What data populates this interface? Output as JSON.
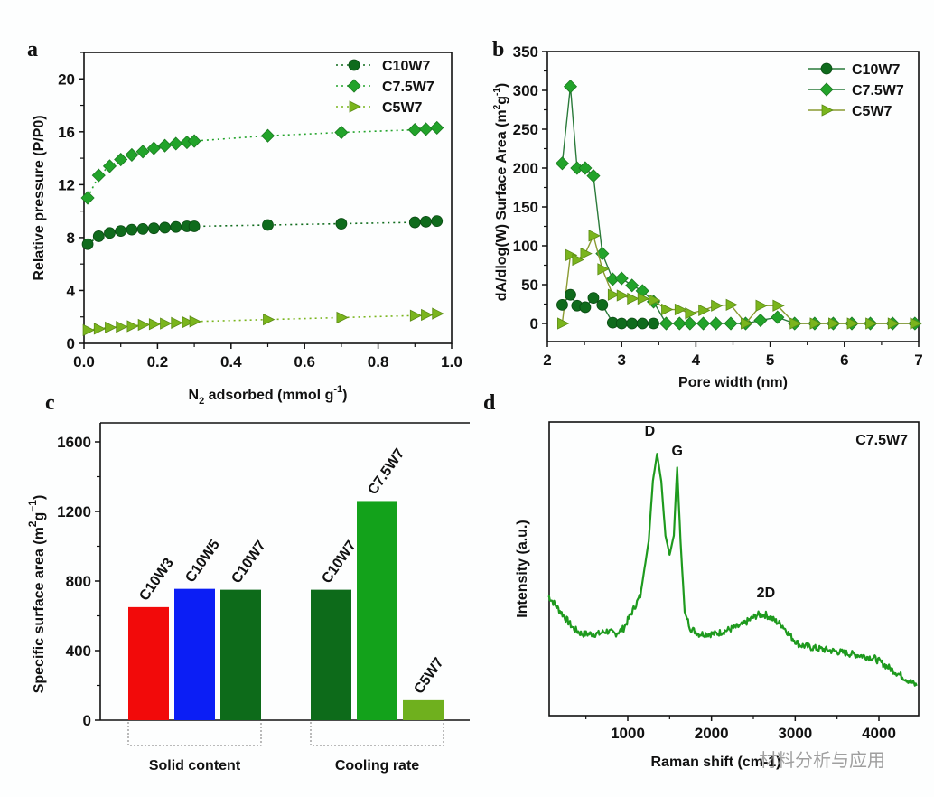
{
  "panels": {
    "a": {
      "letter": "a"
    },
    "b": {
      "letter": "b"
    },
    "c": {
      "letter": "c"
    },
    "d": {
      "letter": "d"
    }
  },
  "watermark": "材料分析与应用",
  "chart_data": [
    {
      "id": "a",
      "type": "scatter",
      "line_style": "dotted",
      "title": "",
      "xlabel": "N2 adsorbed (mmol g^-1)",
      "xlabel_parts": {
        "pre": "N",
        "sub": "2",
        "mid": " adsorbed (mmol g",
        "sup": "-1",
        "post": ")"
      },
      "ylabel": "Relative pressure (P/P0)",
      "xlim": [
        0,
        1.0
      ],
      "ylim": [
        0,
        22
      ],
      "xticks": [
        "0.0",
        "0.2",
        "0.4",
        "0.6",
        "0.8",
        "1.0"
      ],
      "xtick_values": [
        0,
        0.2,
        0.4,
        0.6,
        0.8,
        1.0
      ],
      "yticks": [
        "0",
        "4",
        "8",
        "12",
        "16",
        "20"
      ],
      "ytick_values": [
        0,
        4,
        8,
        12,
        16,
        20
      ],
      "legend_position": "top-right",
      "x": [
        0.01,
        0.04,
        0.07,
        0.1,
        0.13,
        0.16,
        0.19,
        0.22,
        0.25,
        0.28,
        0.3,
        0.5,
        0.7,
        0.9,
        0.93,
        0.96
      ],
      "series": [
        {
          "name": "C10W7",
          "marker": "circle",
          "color": "#0f6b1c",
          "values": [
            7.5,
            8.1,
            8.35,
            8.5,
            8.6,
            8.65,
            8.7,
            8.75,
            8.8,
            8.85,
            8.85,
            8.95,
            9.05,
            9.15,
            9.2,
            9.25
          ]
        },
        {
          "name": "C7.5W7",
          "marker": "diamond",
          "color": "#22a32a",
          "values": [
            11.0,
            12.7,
            13.4,
            13.9,
            14.25,
            14.5,
            14.75,
            14.95,
            15.1,
            15.2,
            15.3,
            15.7,
            15.95,
            16.15,
            16.2,
            16.3
          ]
        },
        {
          "name": "C5W7",
          "marker": "triangle-right",
          "color": "#7ab51d",
          "values": [
            1.0,
            1.1,
            1.2,
            1.25,
            1.3,
            1.4,
            1.45,
            1.5,
            1.55,
            1.6,
            1.65,
            1.8,
            1.95,
            2.1,
            2.15,
            2.25
          ]
        }
      ]
    },
    {
      "id": "b",
      "type": "line",
      "title": "",
      "xlabel": "Pore width (nm)",
      "ylabel": "dA/dlog(W) Surface Area (m2g-1)",
      "ylabel_parts": {
        "pre": "dA/dlog(W) Surface Area (m",
        "sup1": "2",
        "mid": "g",
        "sup2": "-1",
        "post": ")"
      },
      "xlim": [
        2,
        7
      ],
      "ylim": [
        -25,
        350
      ],
      "xticks": [
        "2",
        "3",
        "4",
        "5",
        "6",
        "7"
      ],
      "xtick_values": [
        2,
        3,
        4,
        5,
        6,
        7
      ],
      "yticks": [
        "0",
        "50",
        "100",
        "150",
        "200",
        "250",
        "300",
        "350"
      ],
      "ytick_values": [
        0,
        50,
        100,
        150,
        200,
        250,
        300,
        350
      ],
      "legend_position": "top-right",
      "series": [
        {
          "name": "C10W7",
          "marker": "circle",
          "color": "#0f6b1c",
          "x": [
            2.2,
            2.31,
            2.4,
            2.51,
            2.62,
            2.74,
            2.88,
            3.0,
            3.14,
            3.28,
            3.43
          ],
          "values": [
            24,
            37,
            23,
            21,
            33,
            24,
            1,
            0,
            0,
            0,
            0
          ]
        },
        {
          "name": "C7.5W7",
          "marker": "diamond",
          "color": "#22a32a",
          "x": [
            2.2,
            2.31,
            2.4,
            2.51,
            2.62,
            2.74,
            2.88,
            3.0,
            3.14,
            3.28,
            3.43,
            3.6,
            3.78,
            3.92,
            4.1,
            4.27,
            4.47,
            4.67,
            4.87,
            5.1,
            5.33,
            5.6,
            5.85,
            6.1,
            6.35,
            6.65,
            6.95
          ],
          "values": [
            206,
            305,
            200,
            200,
            190,
            90,
            57,
            58,
            49,
            42,
            28,
            0,
            0,
            0,
            0,
            0,
            0,
            0,
            4,
            8,
            0,
            0,
            0,
            0,
            0,
            0,
            0
          ]
        },
        {
          "name": "C5W7",
          "marker": "triangle-right",
          "color": "#7ab51d",
          "x": [
            2.2,
            2.31,
            2.4,
            2.51,
            2.62,
            2.74,
            2.88,
            3.0,
            3.14,
            3.28,
            3.43,
            3.6,
            3.78,
            3.92,
            4.1,
            4.27,
            4.47,
            4.67,
            4.87,
            5.1,
            5.33,
            5.6,
            5.85,
            6.1,
            6.35,
            6.65,
            6.95
          ],
          "values": [
            0,
            88,
            82,
            90,
            113,
            70,
            37,
            36,
            32,
            32,
            30,
            18,
            18,
            13,
            17,
            23,
            24,
            0,
            23,
            23,
            0,
            0,
            0,
            0,
            0,
            0,
            0
          ]
        }
      ]
    },
    {
      "id": "c",
      "type": "bar",
      "title": "",
      "xlabel": "",
      "ylabel": "Specific surface area (m2g-1)",
      "ylabel_parts": {
        "pre": "Specific surface area (m",
        "sup1": "2",
        "mid": "g",
        "sup2": "−1",
        "post": ")"
      },
      "ylim": [
        0,
        1700
      ],
      "yticks": [
        "0",
        "400",
        "800",
        "1200",
        "1600"
      ],
      "ytick_values": [
        0,
        400,
        800,
        1200,
        1600
      ],
      "categories": [
        "C10W3",
        "C10W5",
        "C10W7",
        "C10W7",
        "C7.5W7",
        "C5W7"
      ],
      "values": [
        650,
        755,
        750,
        750,
        1260,
        115
      ],
      "colors": [
        "#f20a0a",
        "#0b1ef5",
        "#0d6b1a",
        "#0d6b1a",
        "#13a21b",
        "#6fb01e"
      ],
      "groups": [
        {
          "label": "Solid content",
          "members": [
            0,
            1,
            2
          ]
        },
        {
          "label": "Cooling rate",
          "members": [
            3,
            4,
            5
          ]
        }
      ]
    },
    {
      "id": "d",
      "type": "line",
      "title": "",
      "sample_label": "C7.5W7",
      "xlabel": "Raman shift (cm-1)",
      "ylabel": "Intensity (a.u.)",
      "xlim": [
        50,
        4500
      ],
      "ylim": [
        0,
        1.0
      ],
      "xticks": [
        "1000",
        "2000",
        "3000",
        "4000"
      ],
      "xtick_values": [
        1000,
        2000,
        3000,
        4000
      ],
      "minor_xtick_values": [
        500,
        1500,
        2500,
        3500
      ],
      "peak_labels": [
        {
          "text": "D",
          "x": 1350
        },
        {
          "text": "G",
          "x": 1590
        },
        {
          "text": "2D",
          "x": 2650
        }
      ],
      "color": "#1e9a1e",
      "x": [
        50,
        150,
        250,
        350,
        450,
        550,
        650,
        750,
        850,
        950,
        1050,
        1150,
        1250,
        1300,
        1350,
        1400,
        1450,
        1500,
        1550,
        1590,
        1630,
        1680,
        1750,
        1850,
        1950,
        2050,
        2150,
        2250,
        2350,
        2450,
        2550,
        2650,
        2750,
        2850,
        2950,
        3050,
        3200,
        3400,
        3600,
        3800,
        3950,
        4100,
        4250,
        4400,
        4450
      ],
      "values": [
        0.4,
        0.36,
        0.32,
        0.28,
        0.26,
        0.26,
        0.26,
        0.27,
        0.26,
        0.28,
        0.34,
        0.4,
        0.6,
        0.82,
        0.92,
        0.82,
        0.62,
        0.55,
        0.62,
        0.87,
        0.6,
        0.34,
        0.28,
        0.26,
        0.26,
        0.26,
        0.27,
        0.28,
        0.29,
        0.31,
        0.33,
        0.33,
        0.31,
        0.29,
        0.25,
        0.22,
        0.21,
        0.2,
        0.19,
        0.18,
        0.17,
        0.14,
        0.11,
        0.08,
        0.07
      ]
    }
  ]
}
